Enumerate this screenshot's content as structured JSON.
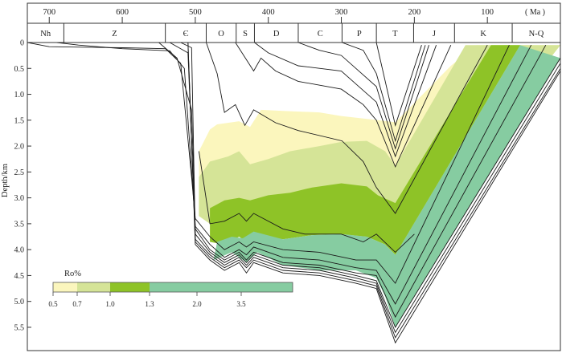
{
  "chart_data": {
    "type": "area",
    "title": "",
    "top_axis": {
      "unit_label": "( Ma )",
      "ticks": [
        700,
        600,
        500,
        400,
        300,
        200,
        100
      ],
      "range": [
        730,
        0
      ]
    },
    "periods": [
      {
        "label": "Nh",
        "start": 730,
        "end": 680
      },
      {
        "label": "Z",
        "start": 680,
        "end": 541
      },
      {
        "label": "Є",
        "start": 541,
        "end": 485
      },
      {
        "label": "O",
        "start": 485,
        "end": 444
      },
      {
        "label": "S",
        "start": 444,
        "end": 419
      },
      {
        "label": "D",
        "start": 419,
        "end": 359
      },
      {
        "label": "C",
        "start": 359,
        "end": 299
      },
      {
        "label": "P",
        "start": 299,
        "end": 252
      },
      {
        "label": "T",
        "start": 252,
        "end": 201
      },
      {
        "label": "J",
        "start": 201,
        "end": 145
      },
      {
        "label": "K",
        "start": 145,
        "end": 66
      },
      {
        "label": "N-Q",
        "start": 66,
        "end": 0
      }
    ],
    "y_axis": {
      "label": "Depth/km",
      "ticks": [
        "0",
        "0.5",
        "1.0",
        "1.5",
        "2.0",
        "2.5",
        "3.0",
        "3.5",
        "4.0",
        "4.5",
        "5.0",
        "5.5"
      ],
      "range": [
        0,
        5.95
      ]
    },
    "legend": {
      "title": "Ro%",
      "ticks": [
        "0.5",
        "0.7",
        "1.0",
        "1.3",
        "2.0",
        "3.5"
      ],
      "colors": [
        "#fbf6bd",
        "#d5e497",
        "#8ec327",
        "#86cca1"
      ]
    },
    "maturity_zones": [
      {
        "name": "0.5-0.7",
        "color": "#fbf6bd",
        "top": [
          [
            495,
            2.1
          ],
          [
            480,
            1.68
          ],
          [
            470,
            1.58
          ],
          [
            440,
            1.52
          ],
          [
            425,
            1.63
          ],
          [
            410,
            1.3
          ],
          [
            380,
            1.32
          ],
          [
            330,
            1.35
          ],
          [
            300,
            1.42
          ],
          [
            250,
            1.5
          ],
          [
            226,
            1.54
          ],
          [
            150,
            0.45
          ],
          [
            115,
            0.05
          ]
        ],
        "bottom": [
          [
            495,
            3.35
          ],
          [
            480,
            3.5
          ],
          [
            460,
            3.45
          ],
          [
            440,
            3.3
          ],
          [
            430,
            3.45
          ],
          [
            420,
            3.3
          ],
          [
            380,
            3.6
          ],
          [
            350,
            3.7
          ],
          [
            300,
            3.7
          ],
          [
            270,
            3.85
          ],
          [
            252,
            3.7
          ],
          [
            240,
            3.75
          ],
          [
            226,
            4.1
          ],
          [
            0,
            0.05
          ]
        ]
      },
      {
        "name": "0.7-1.0",
        "color": "#d5e497",
        "top": [
          [
            495,
            2.6
          ],
          [
            480,
            2.3
          ],
          [
            455,
            2.2
          ],
          [
            440,
            2.1
          ],
          [
            425,
            2.35
          ],
          [
            400,
            2.25
          ],
          [
            370,
            2.1
          ],
          [
            330,
            2.0
          ],
          [
            300,
            1.92
          ],
          [
            265,
            1.9
          ],
          [
            240,
            2.1
          ],
          [
            226,
            2.38
          ],
          [
            130,
            0.05
          ]
        ],
        "bottom": [
          [
            495,
            3.35
          ],
          [
            480,
            3.5
          ],
          [
            460,
            3.45
          ],
          [
            440,
            3.3
          ],
          [
            430,
            3.45
          ],
          [
            420,
            3.3
          ],
          [
            380,
            3.6
          ],
          [
            350,
            3.7
          ],
          [
            300,
            3.7
          ],
          [
            270,
            3.85
          ],
          [
            252,
            3.7
          ],
          [
            240,
            3.75
          ],
          [
            226,
            4.1
          ],
          [
            0,
            0.05
          ]
        ]
      },
      {
        "name": "1.0-1.3",
        "color": "#8ec327",
        "top": [
          [
            480,
            3.2
          ],
          [
            460,
            3.05
          ],
          [
            440,
            3.0
          ],
          [
            425,
            3.05
          ],
          [
            400,
            2.95
          ],
          [
            370,
            2.9
          ],
          [
            340,
            2.8
          ],
          [
            300,
            2.72
          ],
          [
            265,
            2.78
          ],
          [
            250,
            2.95
          ],
          [
            226,
            3.1
          ],
          [
            95,
            0.05
          ]
        ],
        "bottom": [
          [
            480,
            3.85
          ],
          [
            460,
            3.9
          ],
          [
            440,
            3.75
          ],
          [
            430,
            3.85
          ],
          [
            420,
            3.7
          ],
          [
            380,
            3.8
          ],
          [
            340,
            3.72
          ],
          [
            300,
            3.7
          ],
          [
            265,
            3.75
          ],
          [
            240,
            3.9
          ],
          [
            226,
            4.1
          ],
          [
            55,
            0.05
          ]
        ]
      },
      {
        "name": "1.3-2.0",
        "color": "#86cca1",
        "top": [
          [
            470,
            3.85
          ],
          [
            450,
            3.75
          ],
          [
            435,
            3.78
          ],
          [
            420,
            3.65
          ],
          [
            380,
            3.8
          ],
          [
            340,
            3.72
          ],
          [
            300,
            3.7
          ],
          [
            265,
            3.75
          ],
          [
            240,
            3.9
          ],
          [
            226,
            4.1
          ],
          [
            55,
            0.05
          ]
        ],
        "bottom": [
          [
            475,
            4.2
          ],
          [
            450,
            4.05
          ],
          [
            430,
            4.25
          ],
          [
            415,
            4.05
          ],
          [
            380,
            4.3
          ],
          [
            330,
            4.4
          ],
          [
            280,
            4.4
          ],
          [
            252,
            4.55
          ],
          [
            240,
            4.9
          ],
          [
            226,
            5.5
          ],
          [
            0,
            0.3
          ]
        ]
      }
    ],
    "burial_curves": [
      [
        [
          730,
          0
        ],
        [
          700,
          0.08
        ],
        [
          600,
          0.1
        ],
        [
          541,
          0.12
        ],
        [
          520,
          0.4
        ],
        [
          505,
          2.6
        ],
        [
          500,
          3.4
        ],
        [
          480,
          3.75
        ],
        [
          460,
          4.0
        ],
        [
          440,
          3.85
        ],
        [
          430,
          3.95
        ],
        [
          420,
          3.85
        ],
        [
          380,
          4.0
        ],
        [
          330,
          4.05
        ],
        [
          280,
          4.2
        ],
        [
          252,
          4.2
        ],
        [
          226,
          4.65
        ],
        [
          70,
          0.05
        ]
      ],
      [
        [
          690,
          0
        ],
        [
          660,
          0.05
        ],
        [
          600,
          0.12
        ],
        [
          535,
          0.16
        ],
        [
          515,
          0.5
        ],
        [
          503,
          2.9
        ],
        [
          500,
          3.55
        ],
        [
          480,
          3.9
        ],
        [
          460,
          4.15
        ],
        [
          440,
          4.0
        ],
        [
          430,
          4.1
        ],
        [
          420,
          3.95
        ],
        [
          380,
          4.15
        ],
        [
          330,
          4.2
        ],
        [
          280,
          4.35
        ],
        [
          252,
          4.4
        ],
        [
          226,
          5.05
        ],
        [
          40,
          0.05
        ]
      ],
      [
        [
          550,
          0
        ],
        [
          525,
          0.3
        ],
        [
          505,
          1.3
        ],
        [
          500,
          3.6
        ],
        [
          480,
          4.0
        ],
        [
          460,
          4.2
        ],
        [
          440,
          4.05
        ],
        [
          430,
          4.2
        ],
        [
          420,
          4.05
        ],
        [
          380,
          4.25
        ],
        [
          330,
          4.3
        ],
        [
          280,
          4.45
        ],
        [
          252,
          4.5
        ],
        [
          226,
          5.3
        ],
        [
          20,
          0.05
        ]
      ],
      [
        [
          535,
          0
        ],
        [
          510,
          0.2
        ],
        [
          500,
          3.7
        ],
        [
          480,
          4.05
        ],
        [
          460,
          4.25
        ],
        [
          440,
          4.1
        ],
        [
          430,
          4.25
        ],
        [
          420,
          4.1
        ],
        [
          380,
          4.3
        ],
        [
          330,
          4.35
        ],
        [
          280,
          4.5
        ],
        [
          252,
          4.6
        ],
        [
          226,
          5.5
        ],
        [
          0,
          0.3
        ]
      ],
      [
        [
          520,
          0
        ],
        [
          505,
          0.1
        ],
        [
          500,
          3.8
        ],
        [
          480,
          4.1
        ],
        [
          460,
          4.3
        ],
        [
          440,
          4.15
        ],
        [
          430,
          4.3
        ],
        [
          420,
          4.15
        ],
        [
          380,
          4.35
        ],
        [
          330,
          4.4
        ],
        [
          280,
          4.55
        ],
        [
          252,
          4.65
        ],
        [
          226,
          5.6
        ],
        [
          0,
          0.4
        ]
      ],
      [
        [
          510,
          0
        ],
        [
          500,
          3.85
        ],
        [
          480,
          4.15
        ],
        [
          460,
          4.35
        ],
        [
          440,
          4.2
        ],
        [
          430,
          4.35
        ],
        [
          420,
          4.2
        ],
        [
          380,
          4.4
        ],
        [
          330,
          4.45
        ],
        [
          280,
          4.6
        ],
        [
          252,
          4.7
        ],
        [
          226,
          5.7
        ],
        [
          0,
          0.5
        ]
      ],
      [
        [
          510,
          0
        ],
        [
          500,
          3.9
        ],
        [
          480,
          4.2
        ],
        [
          460,
          4.4
        ],
        [
          440,
          4.25
        ],
        [
          430,
          4.45
        ],
        [
          420,
          4.25
        ],
        [
          380,
          4.45
        ],
        [
          330,
          4.5
        ],
        [
          280,
          4.65
        ],
        [
          252,
          4.75
        ],
        [
          226,
          5.8
        ],
        [
          0,
          0.55
        ]
      ],
      [
        [
          485,
          0
        ],
        [
          470,
          0.6
        ],
        [
          460,
          1.35
        ],
        [
          445,
          1.2
        ],
        [
          432,
          1.6
        ],
        [
          420,
          1.3
        ],
        [
          390,
          1.55
        ],
        [
          359,
          1.7
        ],
        [
          299,
          1.9
        ],
        [
          270,
          2.3
        ],
        [
          252,
          2.8
        ],
        [
          226,
          3.3
        ],
        [
          100,
          0.05
        ]
      ],
      [
        [
          445,
          0
        ],
        [
          420,
          0.55
        ],
        [
          410,
          0.3
        ],
        [
          390,
          0.55
        ],
        [
          359,
          0.75
        ],
        [
          300,
          0.9
        ],
        [
          270,
          1.2
        ],
        [
          252,
          1.5
        ],
        [
          226,
          2.4
        ],
        [
          150,
          0.05
        ]
      ],
      [
        [
          419,
          0
        ],
        [
          400,
          0.2
        ],
        [
          359,
          0.45
        ],
        [
          300,
          0.55
        ],
        [
          252,
          1.15
        ],
        [
          226,
          2.2
        ],
        [
          170,
          0.05
        ]
      ],
      [
        [
          359,
          0
        ],
        [
          330,
          0.15
        ],
        [
          300,
          0.25
        ],
        [
          252,
          0.85
        ],
        [
          226,
          2.05
        ],
        [
          180,
          0.05
        ]
      ],
      [
        [
          299,
          0
        ],
        [
          270,
          0.15
        ],
        [
          252,
          0.6
        ],
        [
          226,
          1.9
        ],
        [
          185,
          0.05
        ]
      ],
      [
        [
          252,
          0
        ],
        [
          226,
          1.6
        ],
        [
          190,
          0.05
        ]
      ],
      [
        [
          495,
          2.1
        ],
        [
          480,
          3.5
        ],
        [
          460,
          3.45
        ],
        [
          440,
          3.3
        ],
        [
          430,
          3.45
        ],
        [
          420,
          3.3
        ],
        [
          380,
          3.6
        ],
        [
          350,
          3.7
        ],
        [
          300,
          3.7
        ],
        [
          270,
          3.85
        ],
        [
          252,
          3.7
        ],
        [
          226,
          4.05
        ],
        [
          200,
          3.7
        ]
      ]
    ]
  }
}
